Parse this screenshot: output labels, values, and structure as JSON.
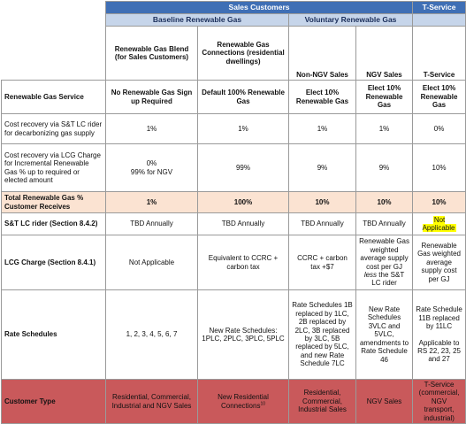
{
  "headers": {
    "sales_customers": "Sales Customers",
    "t_service_top": "T-Service",
    "baseline": "Baseline Renewable Gas",
    "voluntary": "Voluntary Renewable Gas",
    "columns": [
      "Renewable Gas Blend (for Sales Customers)",
      "Renewable Gas Connections (residential dwellings)",
      "Non-NGV Sales",
      "NGV Sales",
      "T-Service"
    ]
  },
  "rows": {
    "service": {
      "label": "Renewable Gas Service",
      "cells": [
        "No Renewable Gas Sign up Required",
        "Default 100% Renewable Gas",
        "Elect 10% Renewable Gas",
        "Elect 10% Renewable Gas",
        "Elect 10% Renewable Gas"
      ]
    },
    "st_recovery": {
      "label": "Cost recovery via S&T LC rider for decarbonizing gas supply",
      "cells": [
        "1%",
        "1%",
        "1%",
        "1%",
        "0%"
      ]
    },
    "lcg_recovery": {
      "label": "Cost recovery via LCG Charge for Incremental Renewable Gas % up to required or elected amount",
      "cell0_line1": "0%",
      "cell0_line2": "99% for NGV",
      "cells": [
        "99%",
        "9%",
        "9%",
        "10%"
      ]
    },
    "total": {
      "label": "Total Renewable Gas % Customer Receives",
      "cells": [
        "1%",
        "100%",
        "10%",
        "10%",
        "10%"
      ]
    },
    "st_rider": {
      "label": "S&T LC rider (Section 8.4.2)",
      "cells": [
        "TBD Annually",
        "TBD Annually",
        "TBD Annually",
        "TBD Annually"
      ],
      "highlight": "Not Applicable"
    },
    "lcg_charge": {
      "label": "LCG Charge (Section 8.4.1)",
      "cells": [
        "Not Applicable",
        "Equivalent to CCRC + carbon tax",
        "CCRC + carbon tax +$7"
      ],
      "ngv_before": "Renewable Gas weighted average supply cost per GJ",
      "ngv_em": "less",
      "ngv_after": "the S&T LC rider",
      "tservice": "Renewable Gas weighted average supply cost per GJ"
    },
    "rate": {
      "label": "Rate Schedules",
      "cells": [
        "1, 2, 3, 4, 5, 6, 7",
        "New Rate Schedules: 1PLC, 2PLC, 3PLC, 5PLC",
        "Rate Schedules 1B replaced by 1LC, 2B replaced by 2LC, 3B replaced by 3LC, 5B replaced by 5LC, and new Rate Schedule 7LC",
        "New Rate Schedules 3VLC and 5VLC, amendments to Rate Schedule 46"
      ],
      "tservice_1": "Rate Schedule 11B replaced by 11LC",
      "tservice_2": "Applicable to RS 22, 23, 25 and 27"
    },
    "customer": {
      "label": "Customer Type",
      "cells": [
        "Residential, Commercial, Industrial and NGV Sales",
        "New Residential Connections",
        "Residential, Commercial, Industrial Sales",
        "NGV Sales",
        "T-Service (commercial, NGV transport, industrial)"
      ],
      "footnote": "10"
    }
  },
  "colors": {
    "header_blue": "#3f6fb5",
    "header_light": "#c6d5ea",
    "total_row": "#fbe3d2",
    "customer_row": "#c9595b",
    "highlight": "#ffff00"
  }
}
